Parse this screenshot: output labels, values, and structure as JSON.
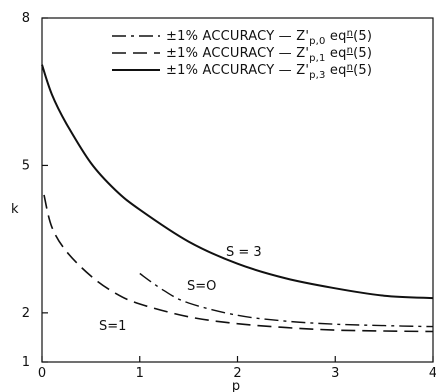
{
  "chart_data": {
    "type": "line",
    "title": "",
    "xlabel": "p",
    "ylabel": "k",
    "xlim": [
      0,
      4
    ],
    "ylim": [
      1,
      8
    ],
    "xticks": [
      "0",
      "1",
      "2",
      "3",
      "4"
    ],
    "yticks": [
      "1",
      "2",
      "5",
      "8"
    ],
    "ytick_values": [
      1,
      2,
      5,
      8
    ],
    "grid": false,
    "legend_position": "top-right",
    "series": [
      {
        "name": "±1% ACCURACY — Z'p,0  eq n (5)",
        "style": "dash-dot",
        "x": [
          1.0,
          1.25,
          1.5,
          2.0,
          2.5,
          3.0,
          3.5,
          4.0
        ],
        "y": [
          2.8,
          2.45,
          2.2,
          1.95,
          1.83,
          1.77,
          1.74,
          1.72
        ]
      },
      {
        "name": "±1% ACCURACY — Z'p,1  eq n (5)",
        "style": "dashed",
        "x": [
          0.02,
          0.1,
          0.25,
          0.5,
          0.75,
          1.0,
          1.5,
          2.0,
          2.5,
          3.0,
          3.5,
          4.0
        ],
        "y": [
          4.4,
          3.75,
          3.25,
          2.75,
          2.4,
          2.18,
          1.92,
          1.78,
          1.7,
          1.65,
          1.63,
          1.62
        ]
      },
      {
        "name": "±1% ACCURACY — Z'p,3  eq n (5)",
        "style": "solid",
        "x": [
          0.0,
          0.1,
          0.25,
          0.5,
          0.75,
          1.0,
          1.5,
          2.0,
          2.5,
          3.0,
          3.5,
          4.0
        ],
        "y": [
          7.05,
          6.45,
          5.85,
          5.05,
          4.5,
          4.1,
          3.45,
          3.0,
          2.7,
          2.5,
          2.35,
          2.3
        ]
      }
    ],
    "annotations": [
      "S = 3",
      "S=O",
      "S=1"
    ],
    "legend": [
      {
        "prefix": "±1% ACCURACY — Z'",
        "sub": "p,0",
        "eq": "eq",
        "n": "n",
        "ref": "(5)"
      },
      {
        "prefix": "±1% ACCURACY — Z'",
        "sub": "p,1",
        "eq": "eq",
        "n": "n",
        "ref": "(5)"
      },
      {
        "prefix": "±1% ACCURACY — Z'",
        "sub": "p,3",
        "eq": "eq",
        "n": "n",
        "ref": "(5)"
      }
    ],
    "colors": {
      "ink": "#111111",
      "background": "#ffffff"
    }
  }
}
